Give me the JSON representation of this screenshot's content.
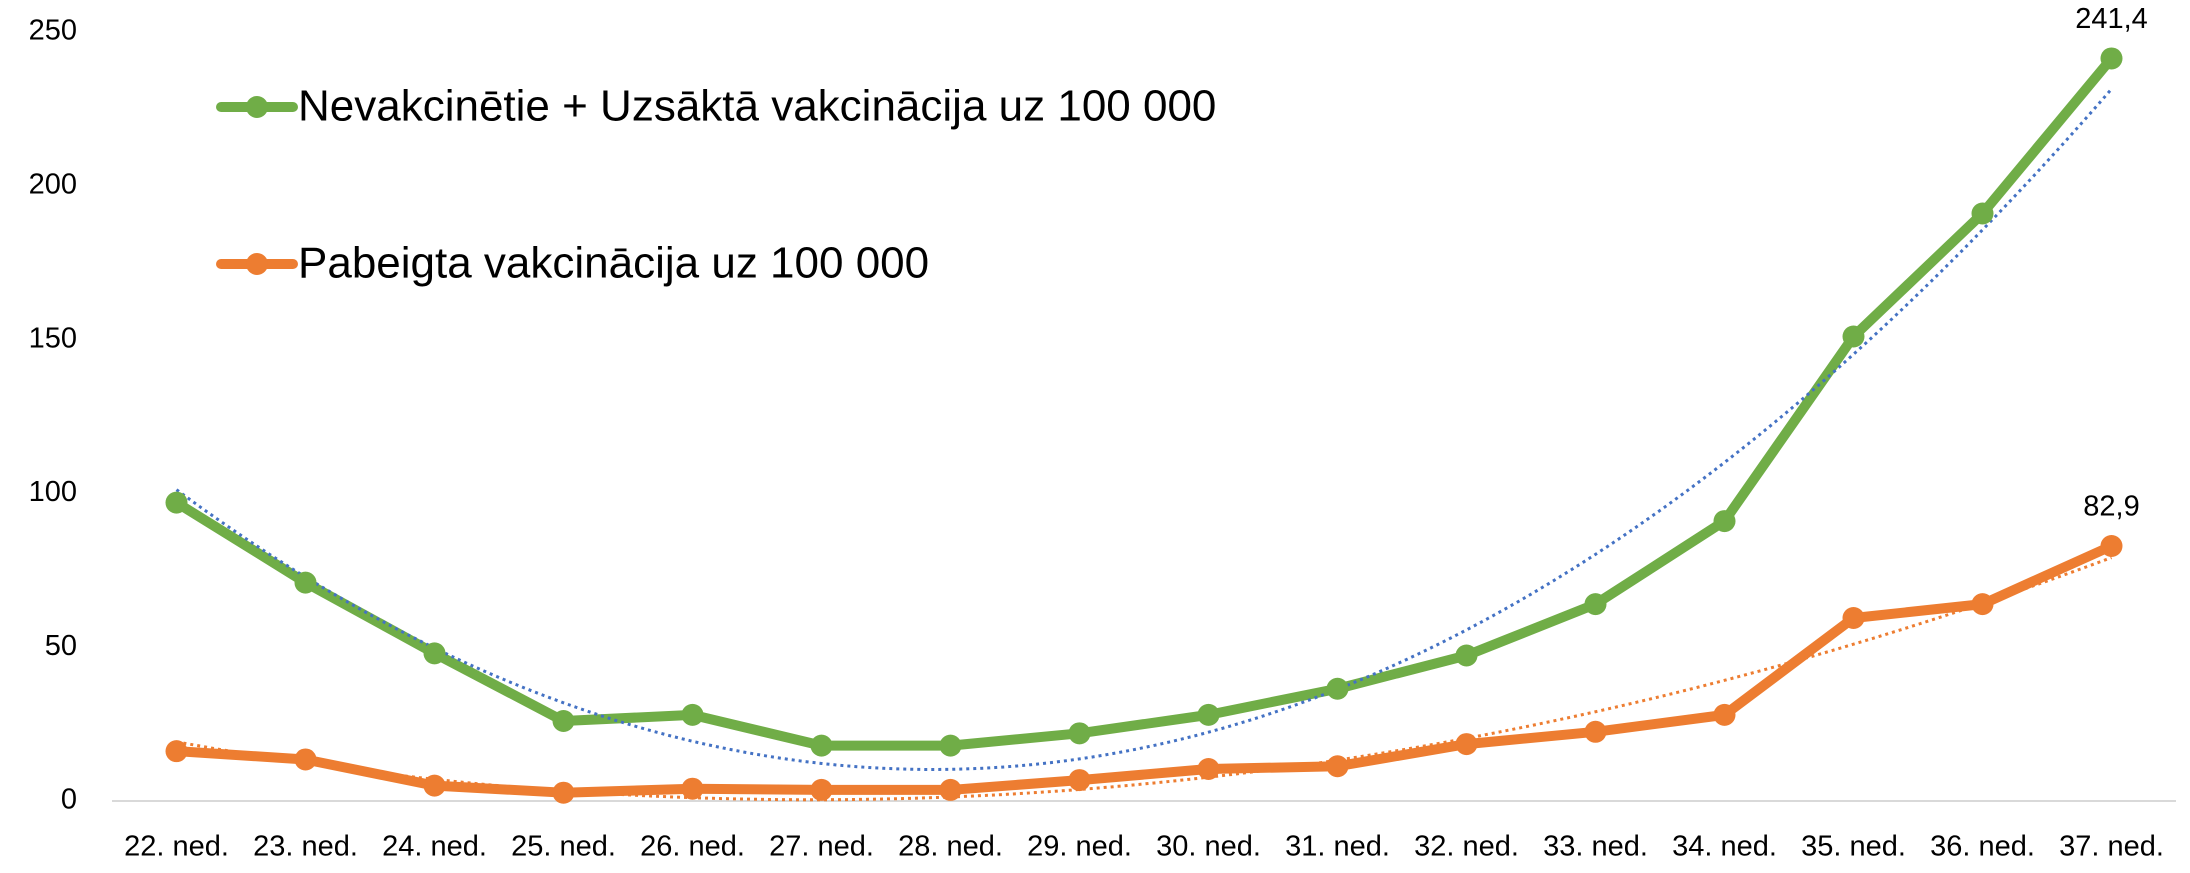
{
  "chart_data": {
    "type": "line",
    "categories": [
      "22. ned.",
      "23. ned.",
      "24. ned.",
      "25. ned.",
      "26. ned.",
      "27. ned.",
      "28. ned.",
      "29. ned.",
      "30. ned.",
      "31. ned.",
      "32. ned.",
      "33. ned.",
      "34. ned.",
      "35. ned.",
      "36. ned.",
      "37. ned."
    ],
    "series": [
      {
        "name": "Nevakcinētie + Uzsāktā vakcinācija uz 100 000",
        "color": "#70ad47",
        "trendline_color": "#4472c4",
        "trendline_order": 2,
        "values": [
          97,
          71,
          48,
          26,
          28,
          18,
          18,
          22,
          28,
          36.5,
          47.3,
          64,
          91,
          151,
          191,
          241.4
        ],
        "value_labels": [
          null,
          null,
          null,
          null,
          null,
          null,
          null,
          null,
          null,
          null,
          null,
          null,
          null,
          null,
          null,
          "241,4"
        ]
      },
      {
        "name": "Pabeigta vakcinācija uz 100 000",
        "color": "#ed7d31",
        "trendline_color": "#ed7d31",
        "trendline_order": 2,
        "values": [
          16.2,
          13.5,
          5,
          2.7,
          4,
          3.6,
          3.6,
          6.8,
          10.4,
          11.3,
          18.5,
          22.5,
          28,
          59.5,
          64,
          82.9
        ],
        "value_labels": [
          null,
          null,
          null,
          null,
          null,
          null,
          null,
          null,
          null,
          null,
          null,
          null,
          null,
          null,
          null,
          "82,9"
        ]
      }
    ],
    "ylim": [
      0,
      250
    ],
    "yticks": [
      0,
      50,
      100,
      150,
      200,
      250
    ],
    "grid": false,
    "legend": "top-left"
  }
}
